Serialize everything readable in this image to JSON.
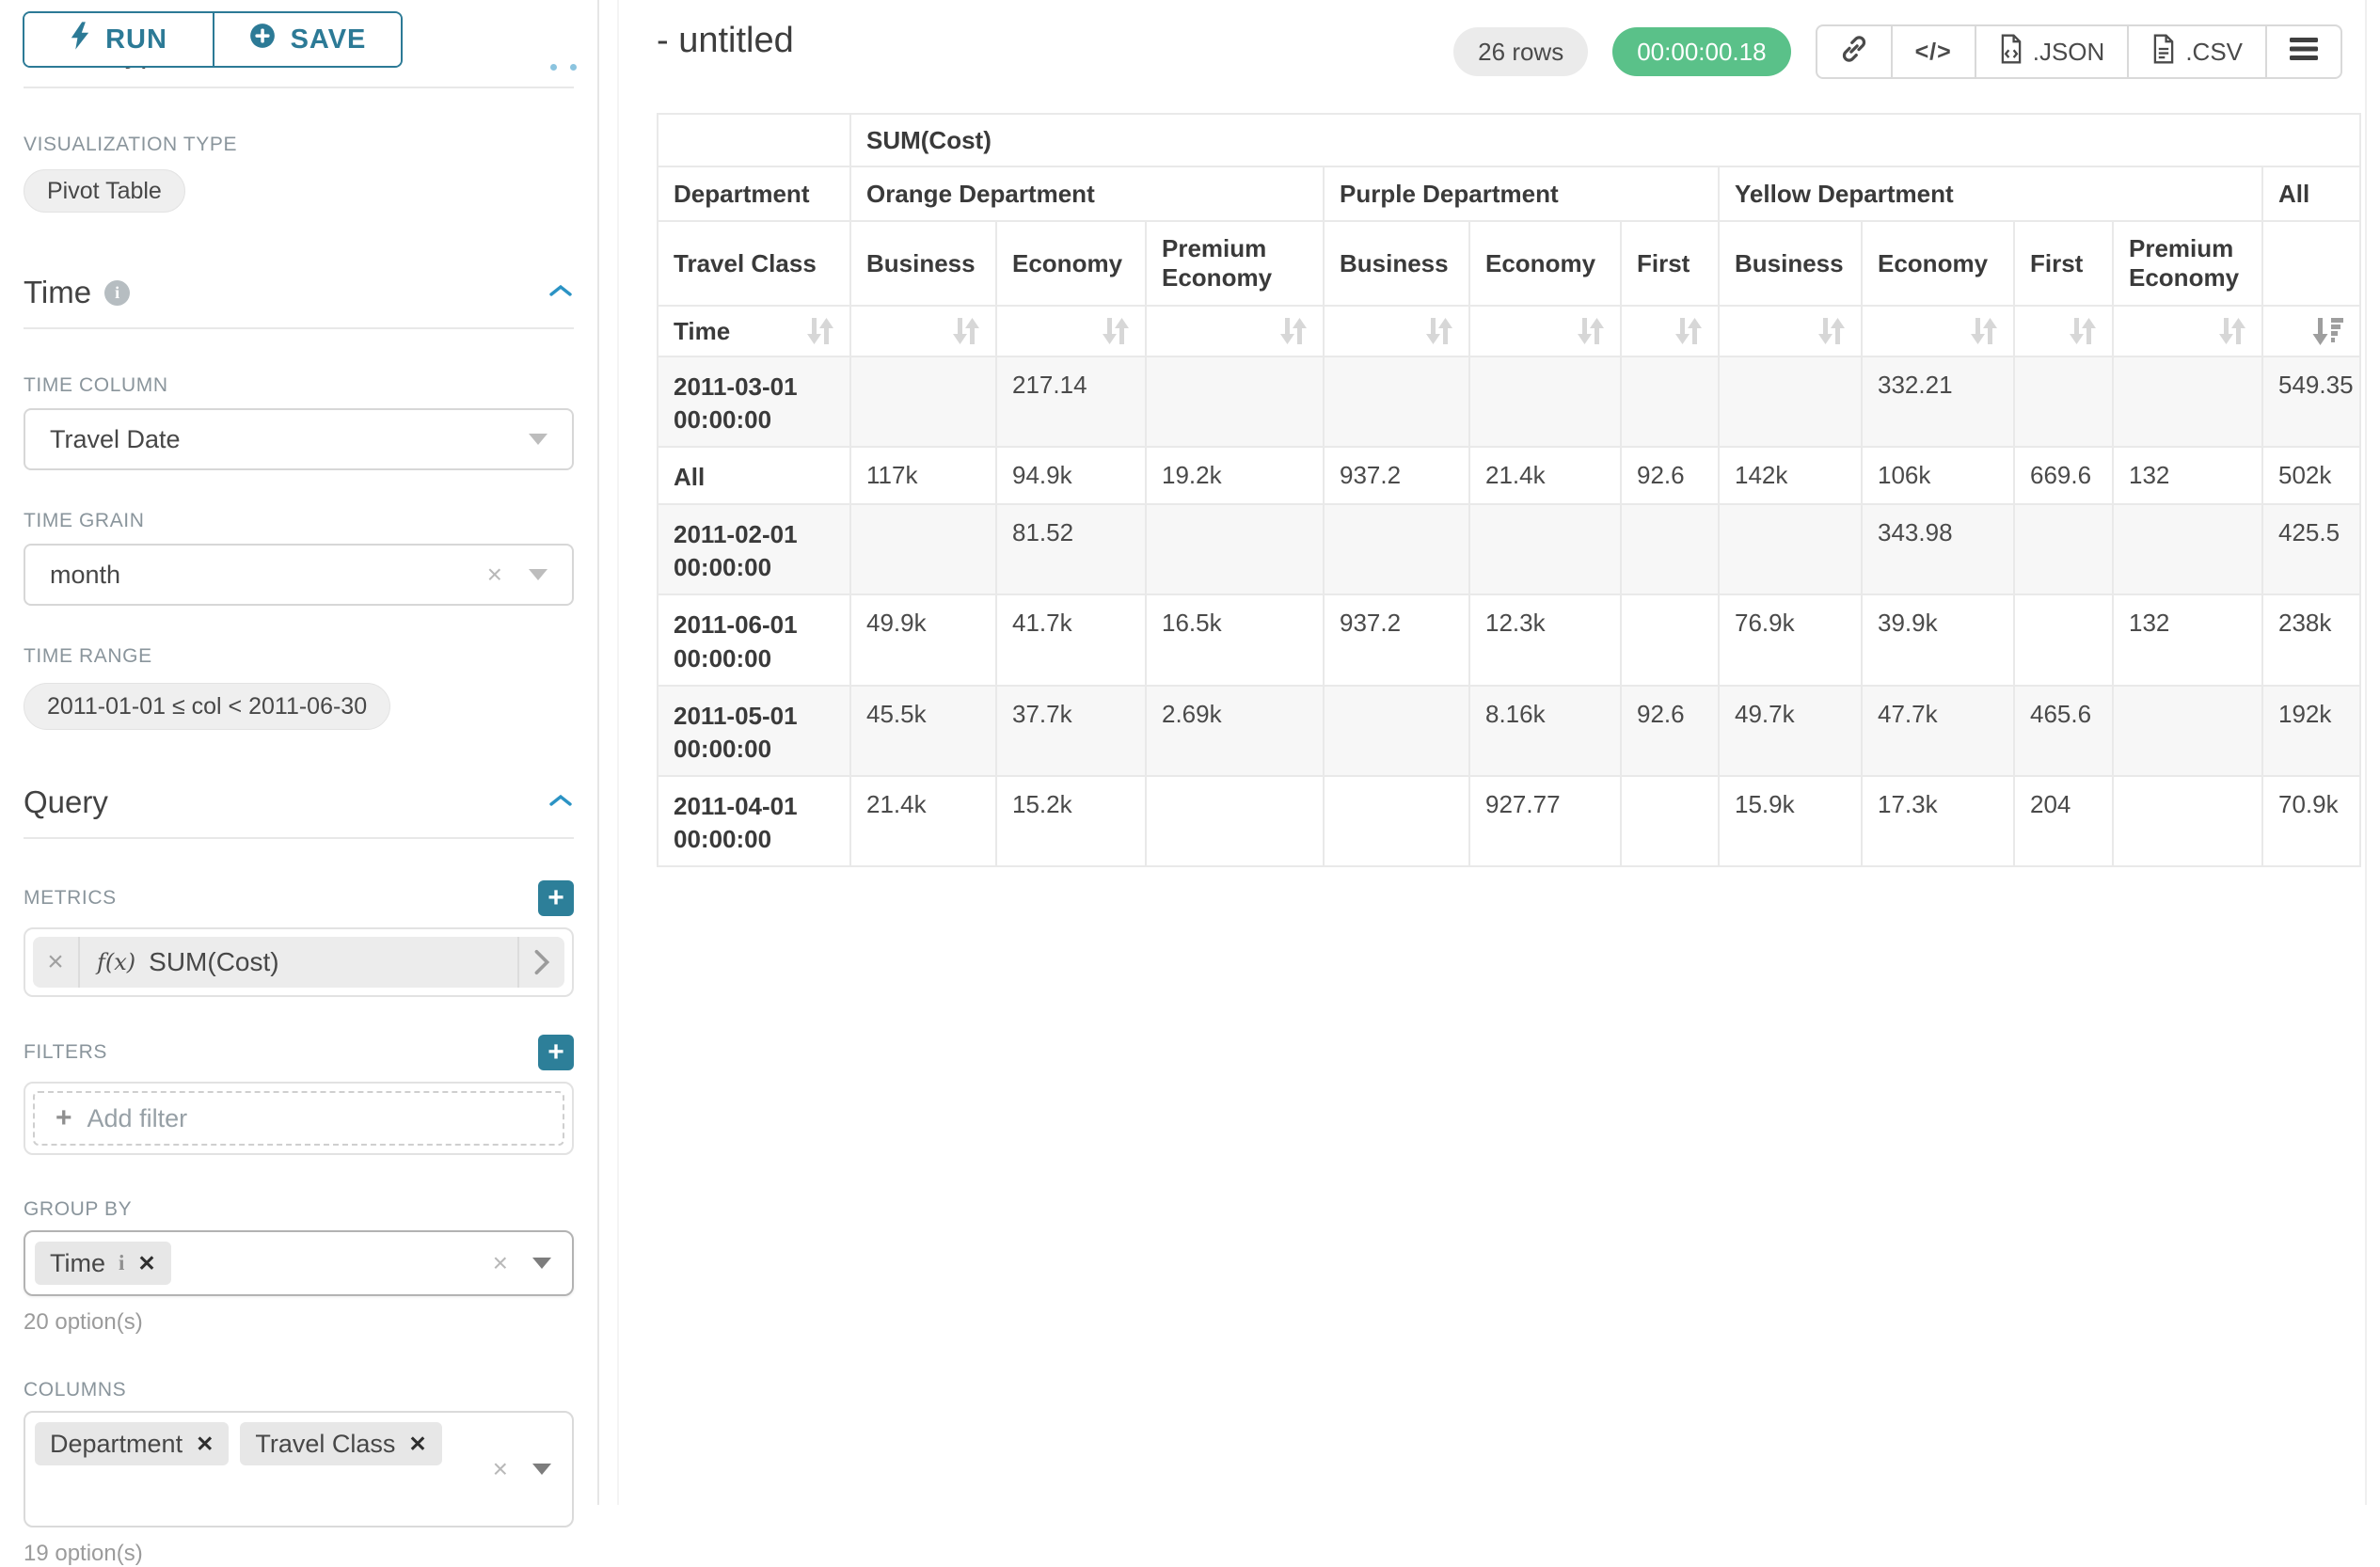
{
  "colors": {
    "primary_teal": "#2c7a96",
    "accent_blue": "#2b93c4",
    "success_green": "#5ac189"
  },
  "toolbar": {
    "run_label": "RUN",
    "save_label": "SAVE"
  },
  "panel": {
    "chart_type_heading": "Chart Type",
    "viz_type_label": "VISUALIZATION TYPE",
    "viz_type_value": "Pivot Table",
    "time": {
      "title": "Time",
      "column_label": "TIME COLUMN",
      "column_value": "Travel Date",
      "grain_label": "TIME GRAIN",
      "grain_value": "month",
      "range_label": "TIME RANGE",
      "range_value": "2011-01-01 ≤ col < 2011-06-30"
    },
    "query": {
      "title": "Query",
      "metrics_label": "METRICS",
      "metric_fx": "f(x)",
      "metric_value": "SUM(Cost)",
      "filters_label": "FILTERS",
      "add_filter": "Add filter",
      "groupby_label": "GROUP BY",
      "groupby_values": [
        "Time"
      ],
      "groupby_hint": "20 option(s)",
      "columns_label": "COLUMNS",
      "columns_values": [
        "Department",
        "Travel Class"
      ],
      "columns_hint": "19 option(s)"
    }
  },
  "header": {
    "title": "- untitled",
    "rows_badge": "26 rows",
    "timer": "00:00:00.18",
    "code_label": "</>",
    "json_label": ".JSON",
    "csv_label": ".CSV"
  },
  "pivot": {
    "metric_header": "SUM(Cost)",
    "col_dimension_label": "Department",
    "row_dimension_label": "Travel Class",
    "time_label": "Time",
    "groups": [
      {
        "name": "Orange Department",
        "span": 3
      },
      {
        "name": "Purple Department",
        "span": 3
      },
      {
        "name": "Yellow Department",
        "span": 4
      },
      {
        "name": "All",
        "span": 1
      }
    ],
    "sub_columns": [
      "Business",
      "Economy",
      "Premium Economy",
      "Business",
      "Economy",
      "First",
      "Business",
      "Economy",
      "First",
      "Premium Economy",
      ""
    ],
    "rows": [
      {
        "label": "2011-03-01 00:00:00",
        "values": [
          "",
          "217.14",
          "",
          "",
          "",
          "",
          "",
          "332.21",
          "",
          "",
          "549.35"
        ]
      },
      {
        "label": "All",
        "values": [
          "117k",
          "94.9k",
          "19.2k",
          "937.2",
          "21.4k",
          "92.6",
          "142k",
          "106k",
          "669.6",
          "132",
          "502k"
        ]
      },
      {
        "label": "2011-02-01 00:00:00",
        "values": [
          "",
          "81.52",
          "",
          "",
          "",
          "",
          "",
          "343.98",
          "",
          "",
          "425.5"
        ]
      },
      {
        "label": "2011-06-01 00:00:00",
        "values": [
          "49.9k",
          "41.7k",
          "16.5k",
          "937.2",
          "12.3k",
          "",
          "76.9k",
          "39.9k",
          "",
          "132",
          "238k"
        ]
      },
      {
        "label": "2011-05-01 00:00:00",
        "values": [
          "45.5k",
          "37.7k",
          "2.69k",
          "",
          "8.16k",
          "92.6",
          "49.7k",
          "47.7k",
          "465.6",
          "",
          "192k"
        ]
      },
      {
        "label": "2011-04-01 00:00:00",
        "values": [
          "21.4k",
          "15.2k",
          "",
          "",
          "927.77",
          "",
          "15.9k",
          "17.3k",
          "204",
          "",
          "70.9k"
        ]
      }
    ]
  }
}
